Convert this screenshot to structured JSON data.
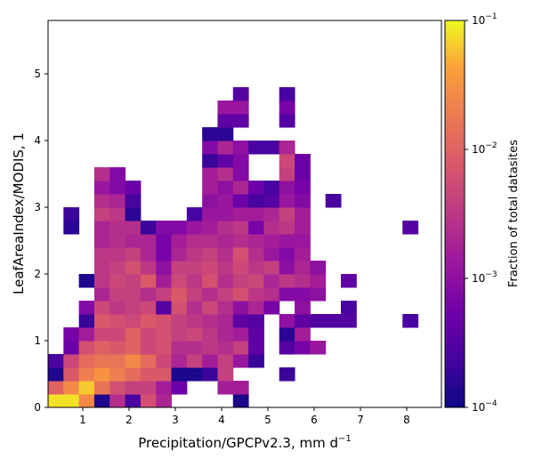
{
  "chart_data": {
    "type": "heatmap",
    "xlabel": "Precipitation/GPCPv2.3,  mm d",
    "xlabel_sup": "−1",
    "ylabel": "LeafAreaIndex/MODIS,  1",
    "xlim": [
      0.25,
      8.75
    ],
    "ylim": [
      0,
      5.8
    ],
    "xticks": [
      1,
      2,
      3,
      4,
      5,
      6,
      7,
      8
    ],
    "yticks": [
      0,
      1,
      2,
      3,
      4,
      5
    ],
    "bin_width_x": 0.333,
    "bin_height_y": 0.2,
    "colorbar": {
      "label": "Fraction of total datasites",
      "scale": "log",
      "colormap": "plasma",
      "range": [
        0.0001,
        0.1
      ],
      "tick_exponents": [
        -4,
        -3,
        -2,
        -1
      ]
    },
    "note": "",
    "grid_rows": [
      {
        "y": 0.0,
        "cells": [
          [
            0,
            -1.1
          ],
          [
            1,
            -1.1
          ],
          [
            2,
            -1.6
          ],
          [
            3,
            -3.9
          ],
          [
            4,
            -2.6
          ],
          [
            5,
            -3.6
          ],
          [
            6,
            -2.2
          ],
          [
            7,
            -2.7
          ],
          [
            12,
            -3.9
          ]
        ]
      },
      {
        "y": 0.2,
        "cells": [
          [
            0,
            -2.0
          ],
          [
            1,
            -1.6
          ],
          [
            2,
            -1.2
          ],
          [
            3,
            -1.8
          ],
          [
            4,
            -2.2
          ],
          [
            5,
            -2.4
          ],
          [
            6,
            -2.4
          ],
          [
            7,
            -2.8
          ],
          [
            8,
            -3.3
          ],
          [
            11,
            -2.8
          ],
          [
            12,
            -2.8
          ]
        ]
      },
      {
        "y": 0.4,
        "cells": [
          [
            0,
            -3.9
          ],
          [
            1,
            -2.1
          ],
          [
            2,
            -1.7
          ],
          [
            3,
            -1.5
          ],
          [
            4,
            -1.7
          ],
          [
            5,
            -1.9
          ],
          [
            6,
            -2.1
          ],
          [
            7,
            -2.1
          ],
          [
            8,
            -3.9
          ],
          [
            9,
            -3.9
          ],
          [
            10,
            -3.7
          ],
          [
            11,
            -2.4
          ],
          [
            15,
            -3.7
          ]
        ]
      },
      {
        "y": 0.6,
        "cells": [
          [
            0,
            -3.6
          ],
          [
            1,
            -2.3
          ],
          [
            2,
            -1.9
          ],
          [
            3,
            -1.8
          ],
          [
            4,
            -1.8
          ],
          [
            5,
            -1.6
          ],
          [
            6,
            -1.9
          ],
          [
            7,
            -2.3
          ],
          [
            8,
            -2.7
          ],
          [
            9,
            -2.4
          ],
          [
            10,
            -2.8
          ],
          [
            11,
            -2.4
          ],
          [
            12,
            -2.9
          ],
          [
            13,
            -3.7
          ]
        ]
      },
      {
        "y": 0.8,
        "cells": [
          [
            1,
            -3.3
          ],
          [
            2,
            -2.2
          ],
          [
            3,
            -2.0
          ],
          [
            4,
            -2.1
          ],
          [
            5,
            -2.0
          ],
          [
            6,
            -2.3
          ],
          [
            7,
            -2.2
          ],
          [
            8,
            -2.6
          ],
          [
            9,
            -2.6
          ],
          [
            10,
            -2.5
          ],
          [
            11,
            -2.6
          ],
          [
            12,
            -2.4
          ],
          [
            13,
            -3.4
          ],
          [
            15,
            -3.5
          ],
          [
            16,
            -3.2
          ],
          [
            17,
            -2.9
          ]
        ]
      },
      {
        "y": 1.0,
        "cells": [
          [
            1,
            -3.2
          ],
          [
            2,
            -2.8
          ],
          [
            3,
            -2.3
          ],
          [
            4,
            -2.3
          ],
          [
            5,
            -2.0
          ],
          [
            6,
            -2.3
          ],
          [
            7,
            -2.2
          ],
          [
            8,
            -2.4
          ],
          [
            9,
            -2.3
          ],
          [
            10,
            -2.5
          ],
          [
            11,
            -2.7
          ],
          [
            12,
            -2.8
          ],
          [
            13,
            -3.4
          ],
          [
            15,
            -3.8
          ],
          [
            16,
            -2.8
          ]
        ]
      },
      {
        "y": 1.2,
        "cells": [
          [
            2,
            -3.7
          ],
          [
            3,
            -2.1
          ],
          [
            4,
            -2.2
          ],
          [
            5,
            -2.3
          ],
          [
            6,
            -2.1
          ],
          [
            7,
            -2.2
          ],
          [
            8,
            -2.4
          ],
          [
            9,
            -2.5
          ],
          [
            10,
            -2.6
          ],
          [
            11,
            -2.7
          ],
          [
            12,
            -3.4
          ],
          [
            13,
            -3.5
          ],
          [
            15,
            -3.0
          ],
          [
            16,
            -3.4
          ],
          [
            17,
            -3.5
          ],
          [
            18,
            -3.5
          ],
          [
            19,
            -3.5
          ],
          [
            23,
            -3.6
          ]
        ]
      },
      {
        "y": 1.4,
        "cells": [
          [
            2,
            -3.1
          ],
          [
            3,
            -2.3
          ],
          [
            4,
            -2.5
          ],
          [
            5,
            -2.4
          ],
          [
            6,
            -2.3
          ],
          [
            7,
            -3.5
          ],
          [
            8,
            -2.2
          ],
          [
            9,
            -2.6
          ],
          [
            10,
            -2.3
          ],
          [
            11,
            -2.6
          ],
          [
            12,
            -3.0
          ],
          [
            13,
            -2.7
          ],
          [
            14,
            -3.2
          ],
          [
            16,
            -3.0
          ],
          [
            19,
            -3.6
          ]
        ]
      },
      {
        "y": 1.6,
        "cells": [
          [
            3,
            -2.7
          ],
          [
            4,
            -2.4
          ],
          [
            5,
            -2.4
          ],
          [
            6,
            -2.6
          ],
          [
            7,
            -2.4
          ],
          [
            8,
            -2.1
          ],
          [
            9,
            -2.4
          ],
          [
            10,
            -2.6
          ],
          [
            11,
            -2.4
          ],
          [
            12,
            -2.2
          ],
          [
            13,
            -2.5
          ],
          [
            14,
            -2.6
          ],
          [
            15,
            -3.1
          ],
          [
            16,
            -3.1
          ],
          [
            17,
            -3.0
          ]
        ]
      },
      {
        "y": 1.8,
        "cells": [
          [
            2,
            -3.9
          ],
          [
            3,
            -2.5
          ],
          [
            4,
            -2.3
          ],
          [
            5,
            -2.4
          ],
          [
            6,
            -2.1
          ],
          [
            7,
            -2.8
          ],
          [
            8,
            -2.3
          ],
          [
            9,
            -2.5
          ],
          [
            10,
            -2.2
          ],
          [
            11,
            -2.6
          ],
          [
            12,
            -2.4
          ],
          [
            13,
            -2.3
          ],
          [
            14,
            -2.7
          ],
          [
            15,
            -2.5
          ],
          [
            16,
            -2.6
          ],
          [
            17,
            -2.8
          ],
          [
            19,
            -3.4
          ]
        ]
      },
      {
        "y": 2.0,
        "cells": [
          [
            3,
            -2.5
          ],
          [
            4,
            -2.4
          ],
          [
            5,
            -2.2
          ],
          [
            6,
            -2.5
          ],
          [
            7,
            -3.0
          ],
          [
            8,
            -2.4
          ],
          [
            9,
            -2.4
          ],
          [
            10,
            -2.3
          ],
          [
            11,
            -2.5
          ],
          [
            12,
            -2.3
          ],
          [
            13,
            -2.5
          ],
          [
            14,
            -2.4
          ],
          [
            15,
            -3.0
          ],
          [
            16,
            -2.7
          ],
          [
            17,
            -3.0
          ]
        ]
      },
      {
        "y": 2.2,
        "cells": [
          [
            3,
            -2.5
          ],
          [
            4,
            -2.5
          ],
          [
            5,
            -2.4
          ],
          [
            6,
            -2.7
          ],
          [
            7,
            -3.2
          ],
          [
            8,
            -2.7
          ],
          [
            9,
            -2.5
          ],
          [
            10,
            -2.4
          ],
          [
            11,
            -2.6
          ],
          [
            12,
            -2.2
          ],
          [
            13,
            -2.6
          ],
          [
            14,
            -2.9
          ],
          [
            15,
            -3.1
          ],
          [
            16,
            -2.8
          ]
        ]
      },
      {
        "y": 2.4,
        "cells": [
          [
            3,
            -2.7
          ],
          [
            4,
            -2.6
          ],
          [
            5,
            -2.7
          ],
          [
            6,
            -2.7
          ],
          [
            7,
            -3.2
          ],
          [
            8,
            -2.8
          ],
          [
            9,
            -2.6
          ],
          [
            10,
            -2.6
          ],
          [
            11,
            -2.7
          ],
          [
            12,
            -2.6
          ],
          [
            13,
            -2.7
          ],
          [
            14,
            -2.8
          ],
          [
            15,
            -2.9
          ],
          [
            16,
            -2.9
          ]
        ]
      },
      {
        "y": 2.6,
        "cells": [
          [
            1,
            -3.8
          ],
          [
            3,
            -2.7
          ],
          [
            4,
            -2.6
          ],
          [
            5,
            -2.6
          ],
          [
            6,
            -3.7
          ],
          [
            7,
            -3.1
          ],
          [
            8,
            -3.1
          ],
          [
            9,
            -2.9
          ],
          [
            10,
            -2.8
          ],
          [
            11,
            -2.6
          ],
          [
            12,
            -2.5
          ],
          [
            13,
            -3.2
          ],
          [
            14,
            -2.6
          ],
          [
            15,
            -2.5
          ],
          [
            16,
            -2.8
          ],
          [
            23,
            -3.5
          ]
        ]
      },
      {
        "y": 2.8,
        "cells": [
          [
            1,
            -3.7
          ],
          [
            3,
            -2.4
          ],
          [
            4,
            -2.5
          ],
          [
            5,
            -3.8
          ],
          [
            9,
            -3.6
          ],
          [
            10,
            -2.9
          ],
          [
            11,
            -2.9
          ],
          [
            12,
            -2.8
          ],
          [
            13,
            -2.8
          ],
          [
            14,
            -2.7
          ],
          [
            15,
            -2.4
          ],
          [
            16,
            -2.8
          ]
        ]
      },
      {
        "y": 3.0,
        "cells": [
          [
            3,
            -2.6
          ],
          [
            4,
            -2.7
          ],
          [
            5,
            -3.6
          ],
          [
            10,
            -3.0
          ],
          [
            11,
            -2.9
          ],
          [
            12,
            -3.3
          ],
          [
            13,
            -3.6
          ],
          [
            14,
            -3.5
          ],
          [
            15,
            -2.9
          ],
          [
            16,
            -3.1
          ],
          [
            18,
            -3.6
          ]
        ]
      },
      {
        "y": 3.2,
        "cells": [
          [
            3,
            -2.9
          ],
          [
            4,
            -3.1
          ],
          [
            5,
            -3.3
          ],
          [
            10,
            -2.8
          ],
          [
            11,
            -3.0
          ],
          [
            12,
            -2.7
          ],
          [
            13,
            -3.3
          ],
          [
            14,
            -3.6
          ],
          [
            15,
            -3.0
          ],
          [
            16,
            -3.2
          ]
        ]
      },
      {
        "y": 3.4,
        "cells": [
          [
            3,
            -2.6
          ],
          [
            4,
            -3.1
          ],
          [
            10,
            -2.8
          ],
          [
            11,
            -2.6
          ],
          [
            12,
            -3.1
          ],
          [
            15,
            -2.4
          ],
          [
            16,
            -3.3
          ]
        ]
      },
      {
        "y": 3.6,
        "cells": [
          [
            10,
            -3.7
          ],
          [
            11,
            -3.4
          ],
          [
            12,
            -3.1
          ],
          [
            15,
            -2.3
          ],
          [
            16,
            -3.3
          ]
        ]
      },
      {
        "y": 3.8,
        "cells": [
          [
            10,
            -3.1
          ],
          [
            11,
            -2.7
          ],
          [
            12,
            -3.0
          ],
          [
            13,
            -3.6
          ],
          [
            14,
            -3.6
          ],
          [
            15,
            -2.7
          ]
        ]
      },
      {
        "y": 4.0,
        "cells": [
          [
            10,
            -3.8
          ],
          [
            11,
            -3.8
          ]
        ]
      },
      {
        "y": 4.2,
        "cells": [
          [
            11,
            -3.4
          ],
          [
            12,
            -3.4
          ],
          [
            15,
            -3.5
          ]
        ]
      },
      {
        "y": 4.4,
        "cells": [
          [
            11,
            -2.9
          ],
          [
            12,
            -2.9
          ],
          [
            15,
            -3.2
          ]
        ]
      },
      {
        "y": 4.6,
        "cells": [
          [
            12,
            -3.5
          ],
          [
            15,
            -3.6
          ]
        ]
      }
    ]
  }
}
